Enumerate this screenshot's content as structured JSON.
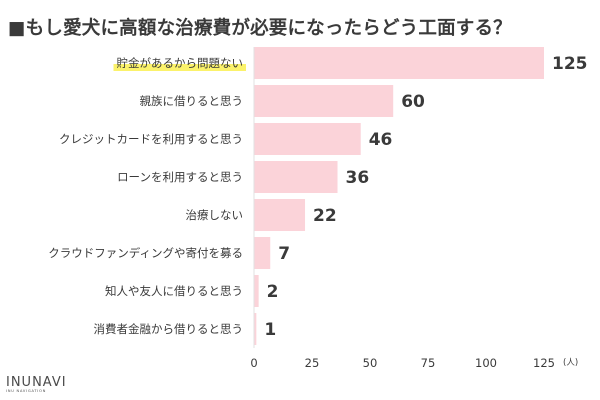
{
  "title": "■もし愛犬に高額な治療費が必要になったらどう工面する？",
  "logo": {
    "name": "INUNAVI",
    "sub": "INU NAVIGATION"
  },
  "colors": {
    "bar": "#fbd3d9",
    "highlight": "#fbf26b",
    "text": "#3a3a3a"
  },
  "chart_data": {
    "type": "bar",
    "orientation": "horizontal",
    "categories": [
      "貯金があるから問題ない",
      "親族に借りると思う",
      "クレジットカードを利用すると思う",
      "ローンを利用すると思う",
      "治療しない",
      "クラウドファンディングや寄付を募る",
      "知人や友人に借りると思う",
      "消費者金融から借りると思う"
    ],
    "values": [
      125,
      60,
      46,
      36,
      22,
      7,
      2,
      1
    ],
    "highlighted_category": "貯金があるから問題ない",
    "xticks": [
      0,
      25,
      50,
      75,
      100,
      125
    ],
    "xlim": [
      0,
      125
    ],
    "xunit": "(人)",
    "grid": false,
    "legend": "none"
  }
}
